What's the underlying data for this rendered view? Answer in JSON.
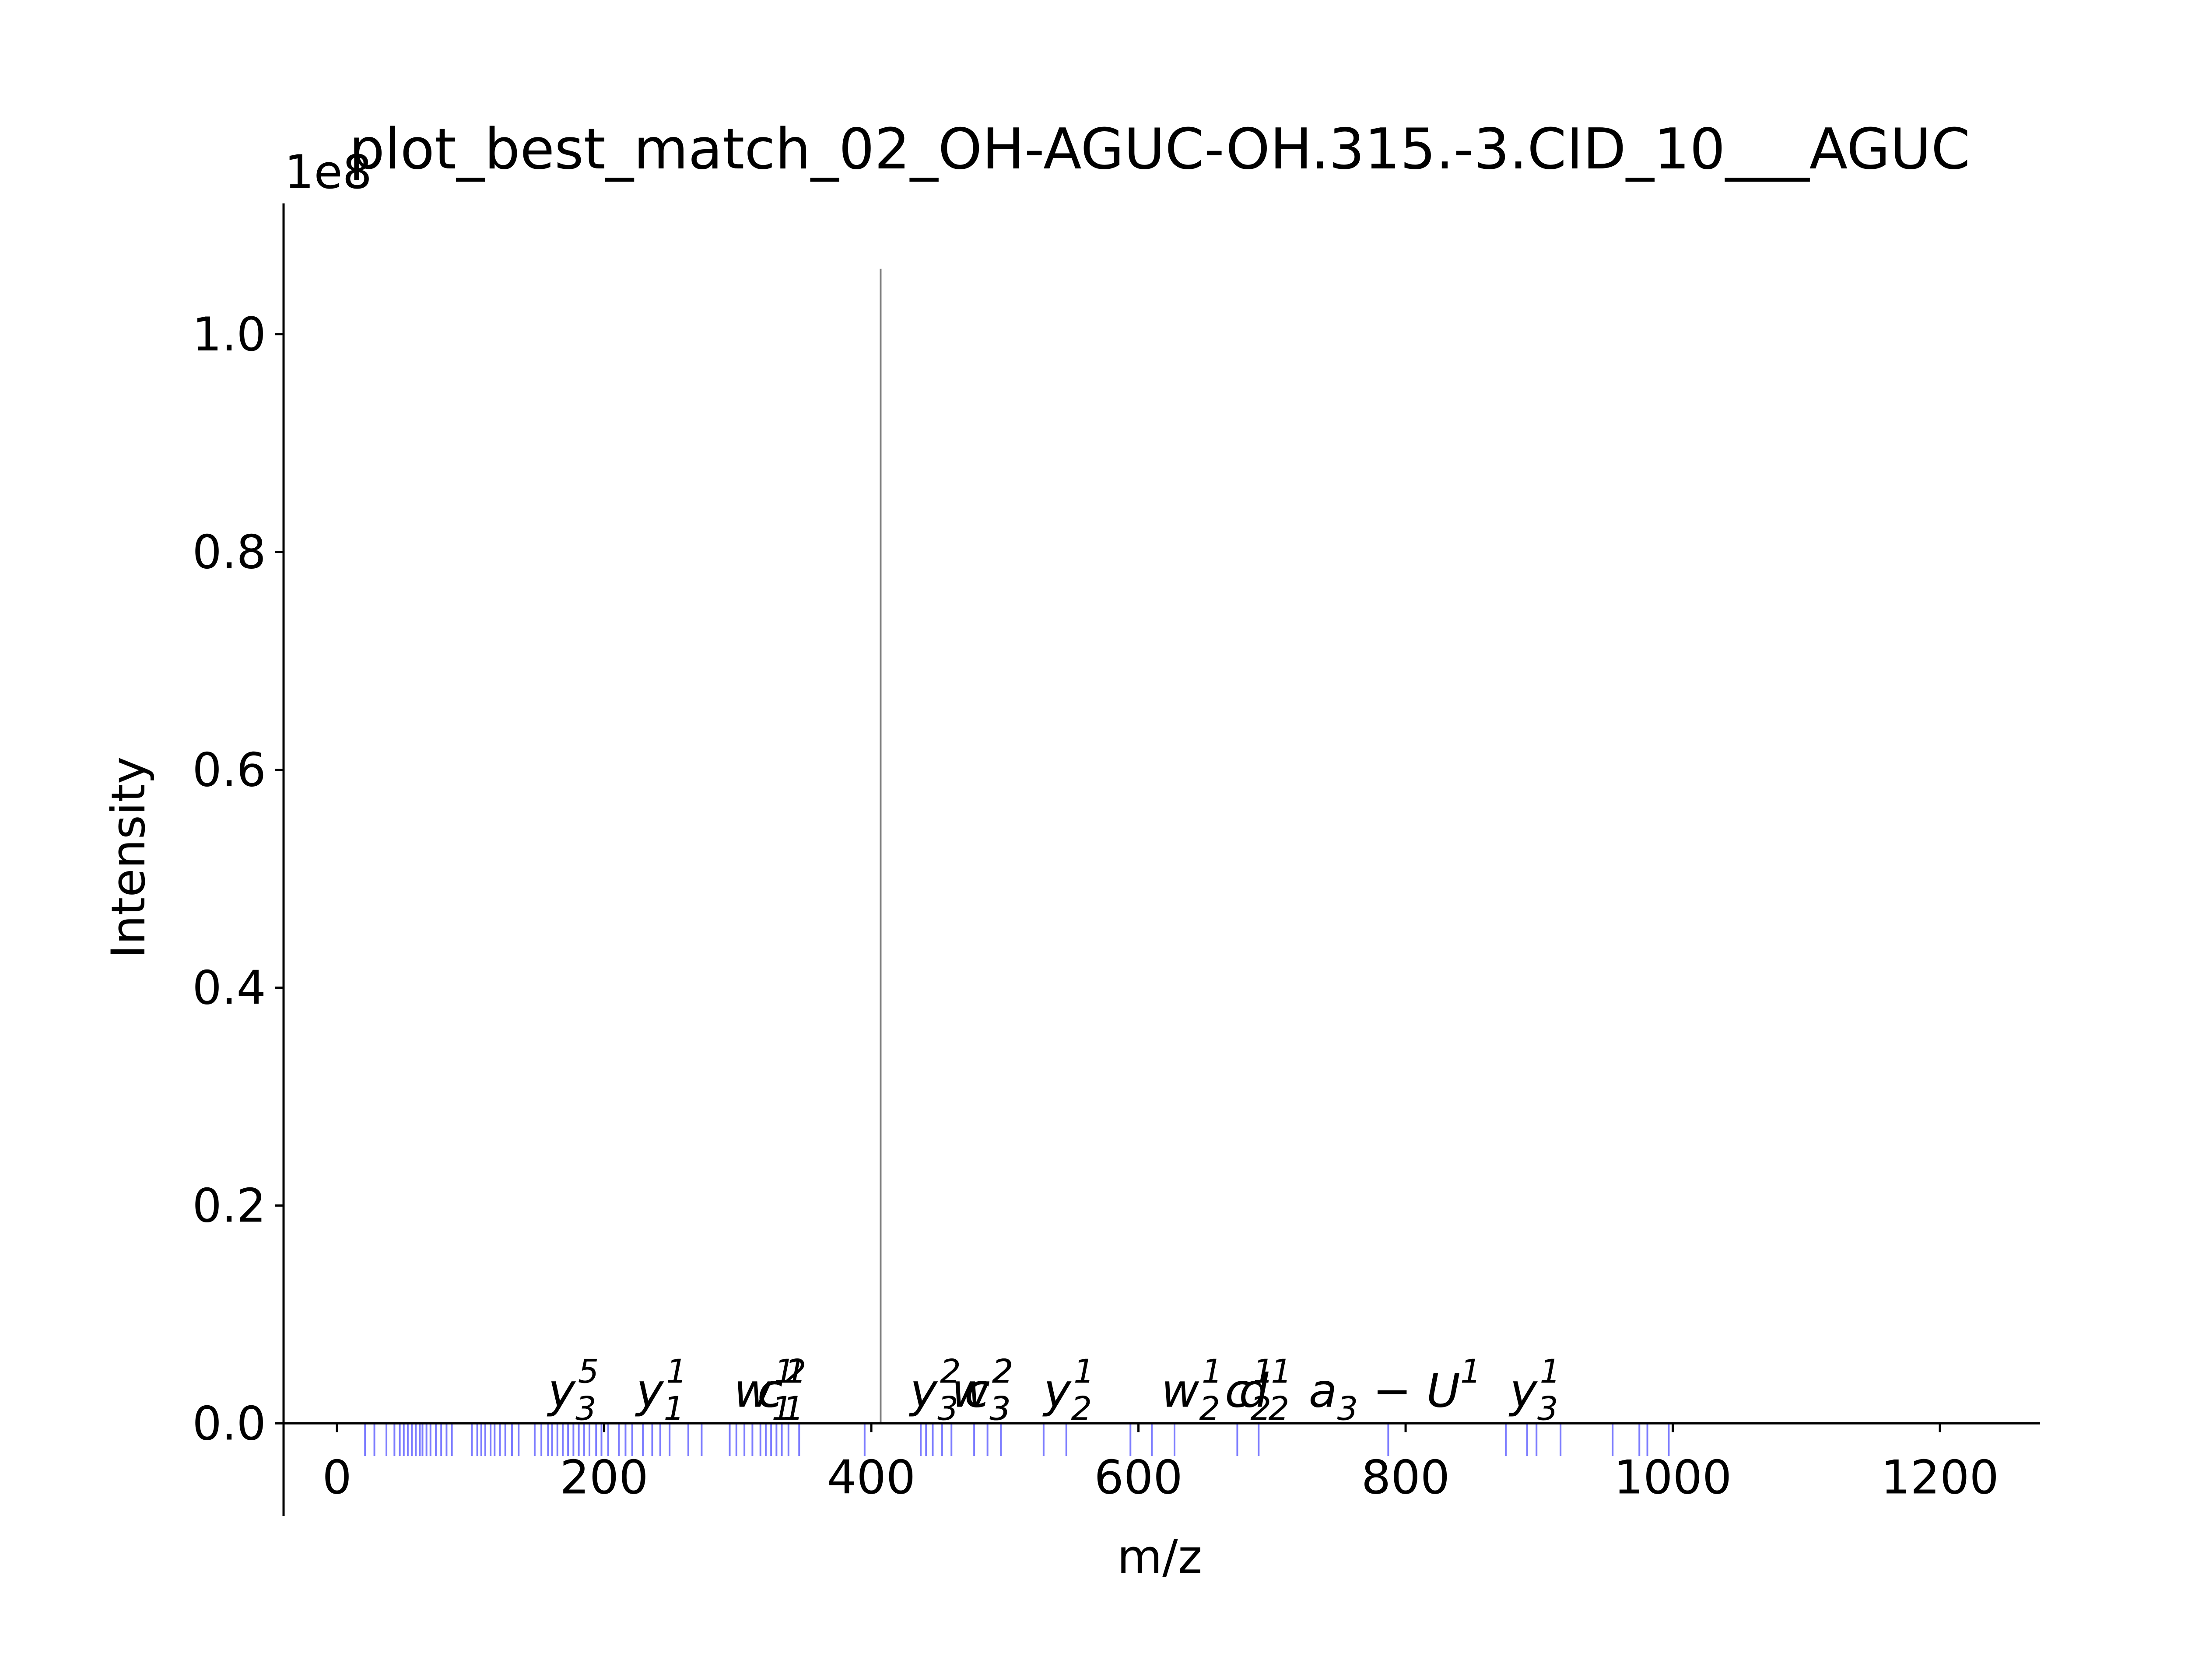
{
  "chart_data": {
    "type": "bar",
    "title": "plot_best_match_02_OH-AGUC-OH.315.-3.CID_10___AGUC",
    "xlabel": "m/z",
    "ylabel": "Intensity",
    "y_offset_text": "1e8",
    "xlim": [
      -40,
      1275
    ],
    "ylim": [
      -0.085,
      1.12
    ],
    "y_scale": 100000000.0,
    "x_ticks": [
      0,
      200,
      400,
      600,
      800,
      1000,
      1200
    ],
    "x_tick_labels": [
      "0",
      "200",
      "400",
      "600",
      "800",
      "1000",
      "1200"
    ],
    "y_ticks": [
      0.0,
      0.2,
      0.4,
      0.6,
      0.8,
      1.0
    ],
    "y_tick_labels": [
      "0.0",
      "0.2",
      "0.4",
      "0.6",
      "0.8",
      "1.0"
    ],
    "grid": false,
    "spines": [
      "left",
      "bottom"
    ],
    "colors": {
      "precursor": "#7f7f7f",
      "theoretical": "#5050ff",
      "axis": "#000000"
    },
    "precursor_peak": {
      "mz": 407,
      "intensity": 1.06
    },
    "theoretical_peaks_below_axis": {
      "depth": -0.03,
      "mz": [
        21,
        28,
        37,
        43,
        47,
        50,
        53,
        56,
        59,
        62,
        64,
        67,
        70,
        74,
        78,
        82,
        86,
        101,
        105,
        108,
        111,
        115,
        118,
        122,
        126,
        131,
        136,
        148,
        153,
        158,
        161,
        165,
        169,
        173,
        177,
        181,
        185,
        189,
        194,
        198,
        203,
        211,
        216,
        221,
        229,
        236,
        242,
        249,
        263,
        273,
        294,
        299,
        305,
        311,
        317,
        321,
        325,
        329,
        333,
        338,
        346,
        395,
        437,
        441,
        446,
        453,
        460,
        477,
        487,
        497,
        529,
        546,
        594,
        610,
        627,
        674,
        690,
        787,
        875,
        891,
        898,
        916,
        955,
        975,
        981,
        997
      ]
    },
    "annotations": [
      {
        "mz": 177,
        "ion": "y",
        "sub": "3",
        "sup": "5"
      },
      {
        "mz": 243,
        "ion": "y",
        "sub": "1",
        "sup": "1"
      },
      {
        "mz": 320,
        "ion": "w",
        "sub": "1",
        "sup": "1"
      },
      {
        "mz": 333,
        "ion": "c",
        "sub": "1",
        "sup": "2"
      },
      {
        "mz": 333,
        "ion": "c",
        "sub": "1",
        "sup": "1"
      },
      {
        "mz": 448,
        "ion": "y",
        "sub": "3",
        "sup": "2"
      },
      {
        "mz": 483,
        "ion": "w",
        "sub": "3",
        "sup": "2"
      },
      {
        "mz": 488,
        "ion": "c",
        "sub": "3",
        "sup": "2"
      },
      {
        "mz": 548,
        "ion": "y",
        "sub": "2",
        "sup": "1"
      },
      {
        "mz": 640,
        "ion": "w",
        "sub": "2",
        "sup": "1"
      },
      {
        "mz": 683,
        "ion": "c",
        "sub": "2",
        "sup": "1"
      },
      {
        "mz": 695,
        "ion": "d",
        "sub": "2",
        "sup": "1"
      },
      {
        "mz": 792,
        "ion": "a",
        "sub": "3",
        "sup": "1",
        "suffix": "U"
      },
      {
        "mz": 897,
        "ion": "y",
        "sub": "3",
        "sup": "1"
      }
    ]
  }
}
